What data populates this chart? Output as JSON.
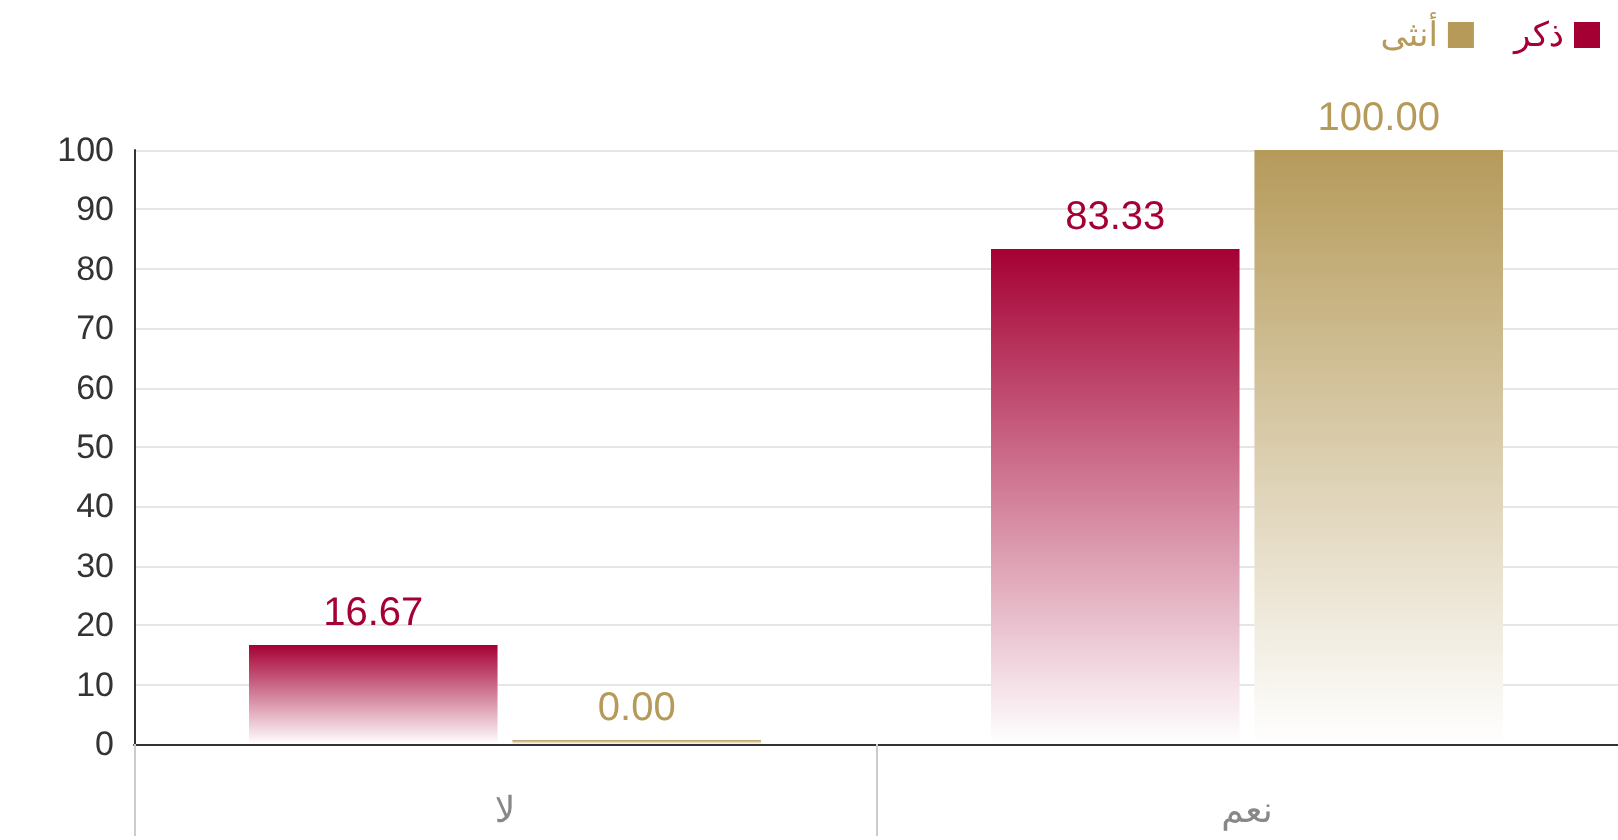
{
  "chart_data": {
    "type": "bar",
    "categories": [
      "لا",
      "نعم"
    ],
    "series": [
      {
        "name": "ذكر",
        "color": "#a50034",
        "values": [
          16.67,
          83.33
        ],
        "value_labels": [
          "16.67",
          "83.33"
        ]
      },
      {
        "name": "أنثى",
        "color": "#b59a5a",
        "values": [
          0,
          100
        ],
        "value_labels": [
          "0.00",
          "100.00"
        ]
      }
    ],
    "ylim": [
      0,
      100
    ],
    "yticks": [
      0,
      10,
      20,
      30,
      40,
      50,
      60,
      70,
      80,
      90,
      100
    ],
    "grid": "y",
    "legend": "top right"
  }
}
